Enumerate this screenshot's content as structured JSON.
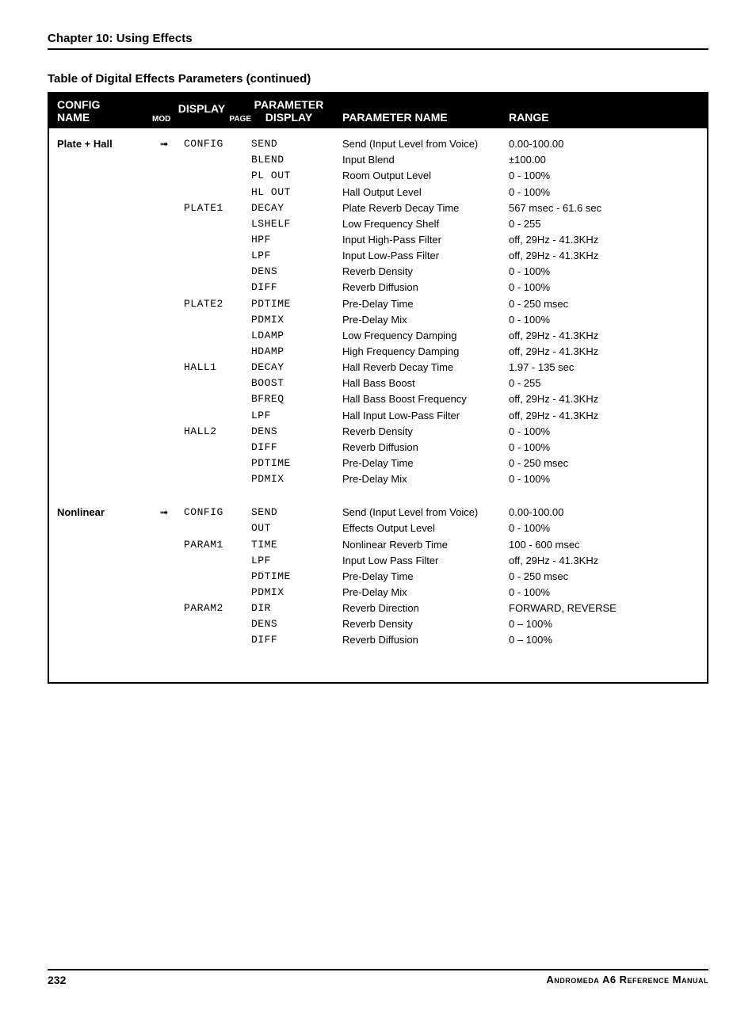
{
  "chapter_title": "Chapter 10: Using Effects",
  "table_title": "Table of Digital Effects Parameters (continued)",
  "headers": {
    "config_name_l1": "CONFIG",
    "config_name_l2": "NAME",
    "display": "DISPLAY",
    "mod": "MOD",
    "page": "PAGE",
    "parameter": "PARAMETER",
    "pdisplay": "DISPLAY",
    "pname": "PARAMETER NAME",
    "range": "RANGE"
  },
  "configs": [
    {
      "name": "Plate + Hall",
      "arrow": "➟",
      "pages": [
        {
          "page": "CONFIG",
          "rows": [
            {
              "pd": "SEND",
              "pn": "Send (Input Level from Voice)",
              "r": "0.00-100.00"
            },
            {
              "pd": "BLEND",
              "pn": "Input Blend",
              "r": "±100.00"
            },
            {
              "pd": "PL OUT",
              "pn": "Room Output Level",
              "r": "0 - 100%"
            },
            {
              "pd": "HL OUT",
              "pn": "Hall Output Level",
              "r": "0 - 100%"
            }
          ]
        },
        {
          "page": "PLATE1",
          "rows": [
            {
              "pd": "DECAY",
              "pn": "Plate Reverb Decay Time",
              "r": "567 msec - 61.6 sec"
            },
            {
              "pd": "LSHELF",
              "pn": "Low Frequency Shelf",
              "r": "0 - 255"
            }
          ]
        },
        {
          "page": "",
          "rows": [
            {
              "pd": "HPF",
              "pn": "Input High-Pass Filter",
              "r": "off, 29Hz - 41.3KHz"
            }
          ]
        },
        {
          "page": "",
          "rows": [
            {
              "pd": "LPF",
              "pn": "Input Low-Pass Filter",
              "r": "off, 29Hz - 41.3KHz"
            }
          ]
        },
        {
          "page": "",
          "rows": [
            {
              "pd": "DENS",
              "pn": "Reverb Density",
              "r": "0 - 100%"
            }
          ]
        },
        {
          "page": "",
          "rows": [
            {
              "pd": "DIFF",
              "pn": "Reverb Diffusion",
              "r": "0 - 100%"
            }
          ]
        },
        {
          "page": "PLATE2",
          "rows": [
            {
              "pd": "PDTIME",
              "pn": "Pre-Delay Time",
              "r": "0 - 250 msec"
            }
          ]
        },
        {
          "page": "",
          "rows": [
            {
              "pd": "PDMIX",
              "pn": "Pre-Delay Mix",
              "r": "0 - 100%"
            }
          ]
        },
        {
          "page": "",
          "rows": [
            {
              "pd": "LDAMP",
              "pn": "Low Frequency Damping",
              "r": "off, 29Hz - 41.3KHz"
            }
          ]
        },
        {
          "page": "",
          "rows": [
            {
              "pd": "HDAMP",
              "pn": "High Frequency Damping",
              "r": "off, 29Hz - 41.3KHz"
            }
          ]
        },
        {
          "page": "HALL1",
          "rows": [
            {
              "pd": "DECAY",
              "pn": "Hall Reverb Decay Time",
              "r": "1.97 - 135 sec"
            },
            {
              "pd": "BOOST",
              "pn": "Hall Bass Boost",
              "r": "0 - 255"
            },
            {
              "pd": "BFREQ",
              "pn": "Hall Bass Boost Frequency",
              "r": "off, 29Hz - 41.3KHz"
            },
            {
              "pd": "LPF",
              "pn": "Hall Input Low-Pass Filter",
              "r": "off, 29Hz - 41.3KHz"
            }
          ]
        },
        {
          "page": "HALL2",
          "rows": [
            {
              "pd": "DENS",
              "pn": "Reverb Density",
              "r": "0 - 100%"
            },
            {
              "pd": "DIFF",
              "pn": "Reverb Diffusion",
              "r": "0 - 100%"
            },
            {
              "pd": "PDTIME",
              "pn": "Pre-Delay Time",
              "r": "0 - 250 msec"
            },
            {
              "pd": "PDMIX",
              "pn": "Pre-Delay Mix",
              "r": "0 - 100%"
            }
          ]
        }
      ]
    },
    {
      "name": "Nonlinear",
      "arrow": "➟",
      "pages": [
        {
          "page": "CONFIG",
          "rows": [
            {
              "pd": "SEND",
              "pn": "Send (Input Level from Voice)",
              "r": "0.00-100.00"
            },
            {
              "pd": "OUT",
              "pn": "Effects Output Level",
              "r": "0 - 100%"
            }
          ]
        },
        {
          "page": "PARAM1",
          "rows": [
            {
              "pd": "TIME",
              "pn": "Nonlinear Reverb Time",
              "r": "100 - 600 msec"
            },
            {
              "pd": "LPF",
              "pn": "Input Low Pass Filter",
              "r": "off, 29Hz - 41.3KHz"
            },
            {
              "pd": "PDTIME",
              "pn": "Pre-Delay Time",
              "r": "0 - 250 msec"
            },
            {
              "pd": "PDMIX",
              "pn": "Pre-Delay Mix",
              "r": "0 - 100%"
            }
          ]
        },
        {
          "page": "PARAM2",
          "rows": [
            {
              "pd": "DIR",
              "pn": "Reverb Direction",
              "r": "FORWARD, REVERSE"
            },
            {
              "pd": "DENS",
              "pn": "Reverb Density",
              "r": "0 – 100%"
            },
            {
              "pd": "DIFF",
              "pn": "Reverb Diffusion",
              "r": "0 – 100%"
            }
          ]
        }
      ]
    }
  ],
  "footer": {
    "page_number": "232",
    "ref_a": "Andromeda A6 Reference Manual"
  },
  "colors": {
    "bg": "#ffffff",
    "text": "#000000",
    "header_bg": "#000000",
    "header_text": "#ffffff"
  }
}
